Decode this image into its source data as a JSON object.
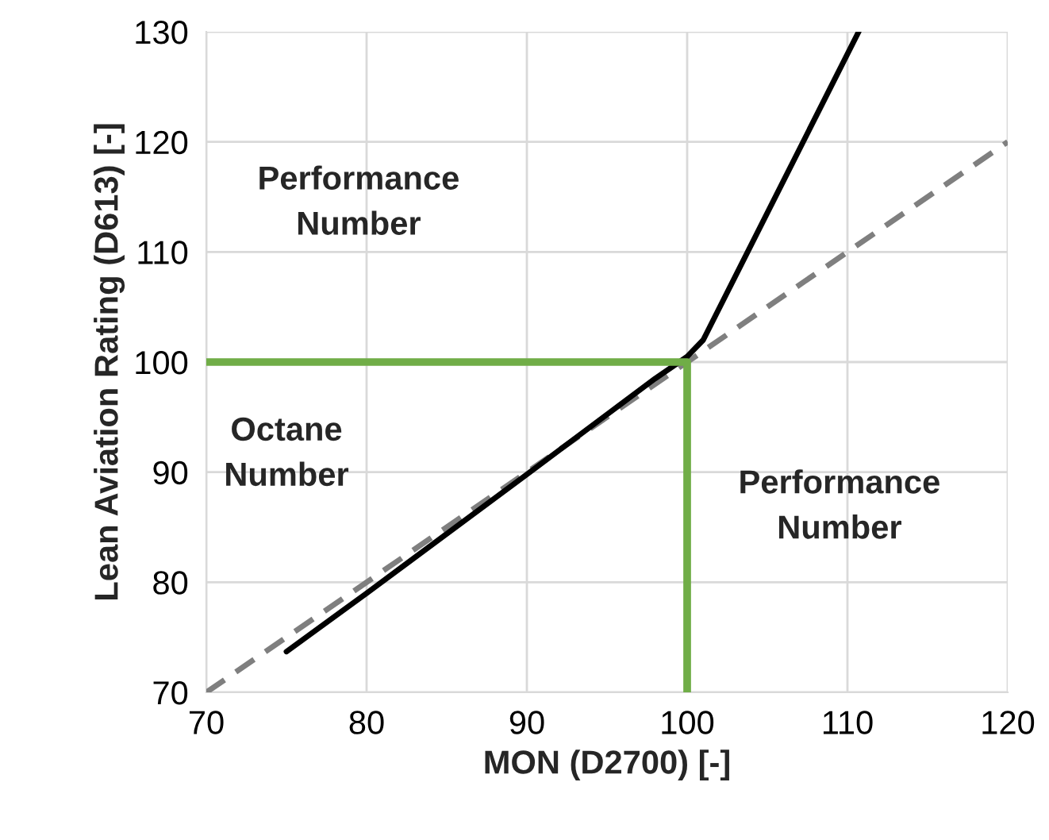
{
  "chart_data": {
    "type": "line",
    "xlabel": "MON (D2700) [-]",
    "ylabel": "Lean Aviation Rating (D613) [-]",
    "series": [
      {
        "color": "#7f7f7f",
        "x": [
          70,
          120
        ],
        "values": [
          70,
          120
        ],
        "line_style": "dashed"
      },
      {
        "color": "#000000",
        "x": [
          75,
          80,
          90,
          98,
          100,
          101,
          110.7
        ],
        "values": [
          73.7,
          79,
          89.8,
          98.5,
          100.5,
          102,
          130
        ],
        "line_style": "solid"
      },
      {
        "color": "#70ad47",
        "x": [
          70,
          100,
          100
        ],
        "values": [
          100,
          100,
          70
        ],
        "line_style": "solid"
      }
    ],
    "xlim": [
      70,
      120
    ],
    "ylim": [
      70,
      130
    ],
    "xticks": [
      70,
      80,
      90,
      100,
      110,
      120
    ],
    "yticks": [
      70,
      80,
      90,
      100,
      110,
      120,
      130
    ],
    "grid": true,
    "legend": false,
    "marker": "none",
    "annotations": [
      "Performance\nNumber",
      "Octane\nNumber",
      "Performance\nNumber"
    ]
  }
}
